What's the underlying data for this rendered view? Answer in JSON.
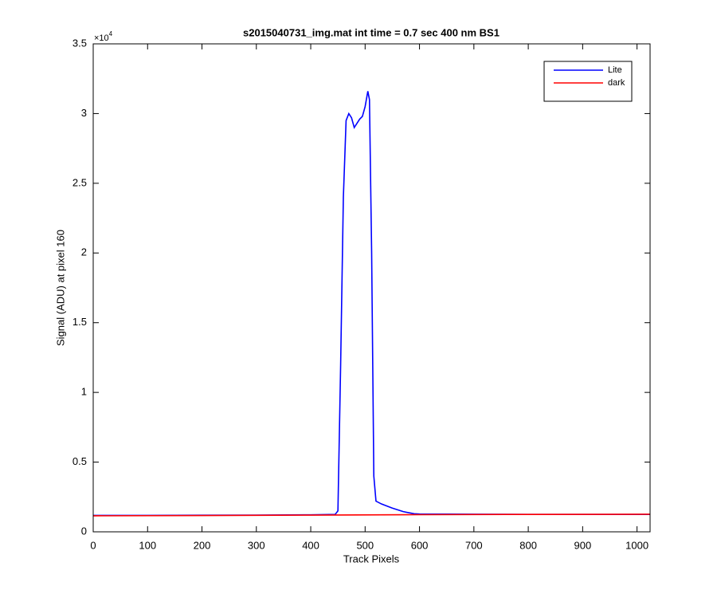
{
  "chart_data": {
    "type": "line",
    "title": "s2015040731_img.mat int time = 0.7 sec  400 nm BS1",
    "x_label": "Track Pixels",
    "y_label": "Signal (ADU) at pixel 160",
    "y_multiplier": {
      "base": "×10",
      "exponent": "4"
    },
    "xlim": [
      0,
      1024
    ],
    "ylim": [
      0,
      35000
    ],
    "xticks": [
      0,
      100,
      200,
      300,
      400,
      500,
      600,
      700,
      800,
      900,
      1000
    ],
    "yticks": [
      {
        "value": 0,
        "label": "0"
      },
      {
        "value": 5000,
        "label": "0.5"
      },
      {
        "value": 10000,
        "label": "1"
      },
      {
        "value": 15000,
        "label": "1.5"
      },
      {
        "value": 20000,
        "label": "2"
      },
      {
        "value": 25000,
        "label": "2.5"
      },
      {
        "value": 30000,
        "label": "3"
      },
      {
        "value": 35000,
        "label": "3.5"
      }
    ],
    "grid": false,
    "legend_position": "upper-right",
    "series": [
      {
        "name": "Lite",
        "color": "#0000ff",
        "x": [
          0,
          100,
          200,
          300,
          400,
          445,
          450,
          455,
          460,
          465,
          470,
          475,
          480,
          485,
          490,
          495,
          500,
          505,
          508,
          512,
          516,
          520,
          530,
          550,
          570,
          590,
          600,
          700,
          800,
          900,
          1024
        ],
        "values": [
          1180,
          1180,
          1190,
          1200,
          1220,
          1250,
          1500,
          12000,
          24000,
          29500,
          30000,
          29700,
          29000,
          29300,
          29600,
          29800,
          30500,
          31600,
          31000,
          20000,
          4000,
          2200,
          2000,
          1700,
          1450,
          1300,
          1280,
          1260,
          1250,
          1250,
          1250
        ]
      },
      {
        "name": "dark",
        "color": "#ff0000",
        "x": [
          0,
          200,
          400,
          600,
          800,
          1024
        ],
        "values": [
          1150,
          1170,
          1200,
          1230,
          1250,
          1260
        ]
      }
    ]
  }
}
